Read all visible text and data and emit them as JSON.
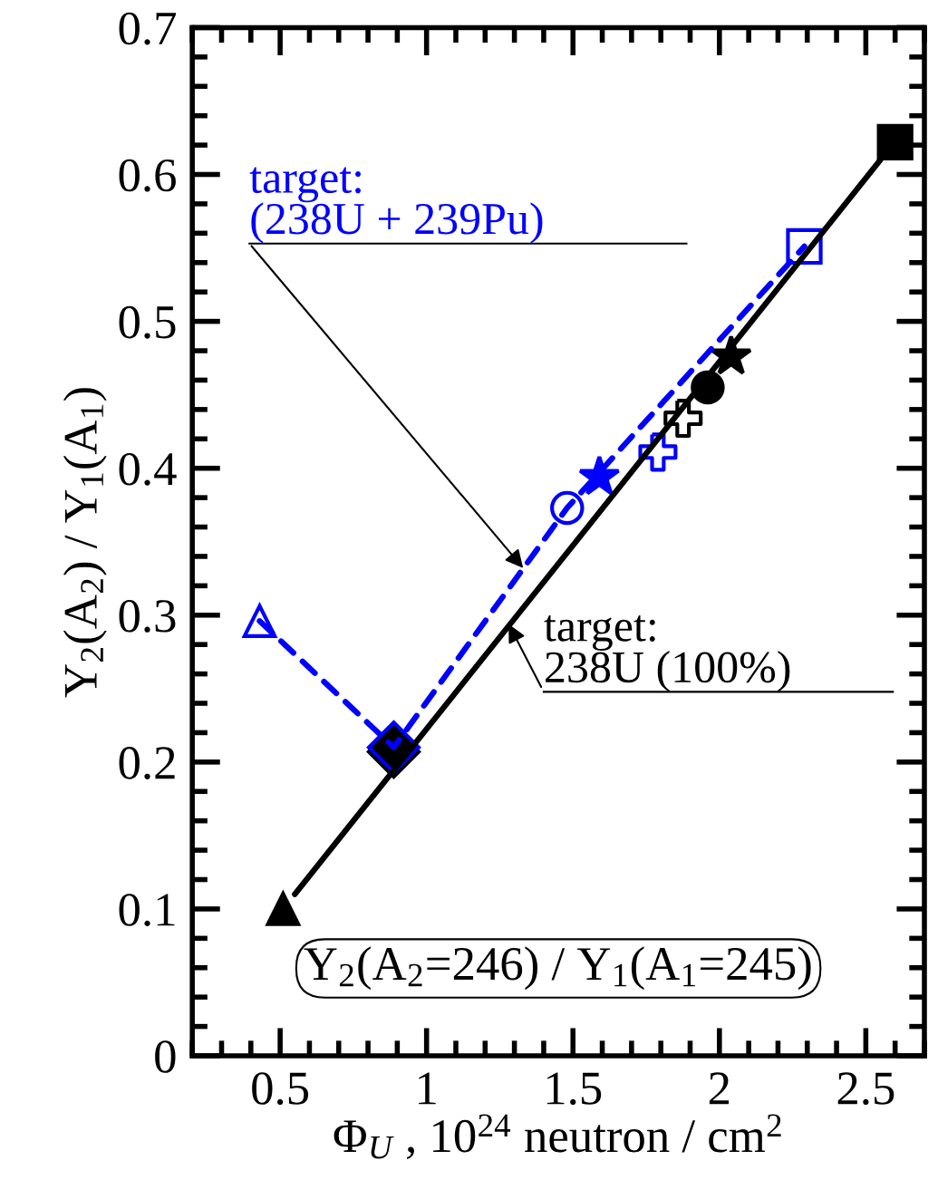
{
  "chart_data": {
    "type": "scatter",
    "xlabel": "Φ$_{U}$ , 10$^{24}$ neutron / cm$^{2}$",
    "ylabel": "Y$_{2}$(A$_{2}$) / Y$_{1}$(A$_{1}$)",
    "xlim": [
      0.2,
      2.7
    ],
    "xticks": [
      0.5,
      1,
      1.5,
      2,
      2.5
    ],
    "ylim": [
      0,
      0.7
    ],
    "yticks": [
      0,
      0.1,
      0.2,
      0.3,
      0.4,
      0.5,
      0.6,
      0.7
    ],
    "grid": false,
    "series": [
      {
        "type": "line",
        "color": "#000000",
        "line_style": "solid",
        "marker": "none",
        "x": [
          0.55,
          2.55
        ],
        "values": [
          0.11,
          0.61
        ]
      },
      {
        "type": "line",
        "color": "#0000ff",
        "line_style": "dashed",
        "marker": "none",
        "x": [
          0.43,
          0.888,
          1.48,
          2.29
        ],
        "values": [
          0.296,
          0.21,
          0.373,
          0.551
        ]
      },
      {
        "color": "#000000",
        "marker": "triangle",
        "x": [
          0.51
        ],
        "values": [
          0.1
        ]
      },
      {
        "color": "#000000",
        "marker": "diamond",
        "x": [
          0.888
        ],
        "values": [
          0.207
        ]
      },
      {
        "color": "#000000",
        "marker": "cross",
        "x": [
          1.876
        ],
        "values": [
          0.434
        ]
      },
      {
        "color": "#000000",
        "marker": "circle",
        "x": [
          1.96
        ],
        "values": [
          0.455
        ]
      },
      {
        "color": "#000000",
        "marker": "star",
        "x": [
          2.04
        ],
        "values": [
          0.476
        ]
      },
      {
        "color": "#000000",
        "marker": "square",
        "x": [
          2.6
        ],
        "values": [
          0.622
        ]
      },
      {
        "color": "#0000ff",
        "marker": "triangle",
        "x": [
          0.43
        ],
        "values": [
          0.296
        ]
      },
      {
        "color": "#0000ff",
        "marker": "diamond",
        "x": [
          0.888
        ],
        "values": [
          0.21
        ]
      },
      {
        "color": "#0000ff",
        "marker": "circle",
        "x": [
          1.48
        ],
        "values": [
          0.373
        ]
      },
      {
        "color": "#0000ff",
        "marker": "star",
        "x": [
          1.59
        ],
        "values": [
          0.394
        ]
      },
      {
        "color": "#0000ff",
        "marker": "cross",
        "x": [
          1.79
        ],
        "values": [
          0.411
        ]
      },
      {
        "color": "#0000ff",
        "marker": "square",
        "x": [
          2.29
        ],
        "values": [
          0.551
        ]
      }
    ],
    "annotations": [
      {
        "text": "target:\n(238U + 239Pu)",
        "x": 1.33,
        "y": 0.332
      },
      {
        "text": "target:\n238U (100%)",
        "x": 1.28,
        "y": 0.294
      },
      "Y$_{2}$(A$_{2}$=246) / Y$_{1}$(A$_{1}$=245)"
    ]
  }
}
